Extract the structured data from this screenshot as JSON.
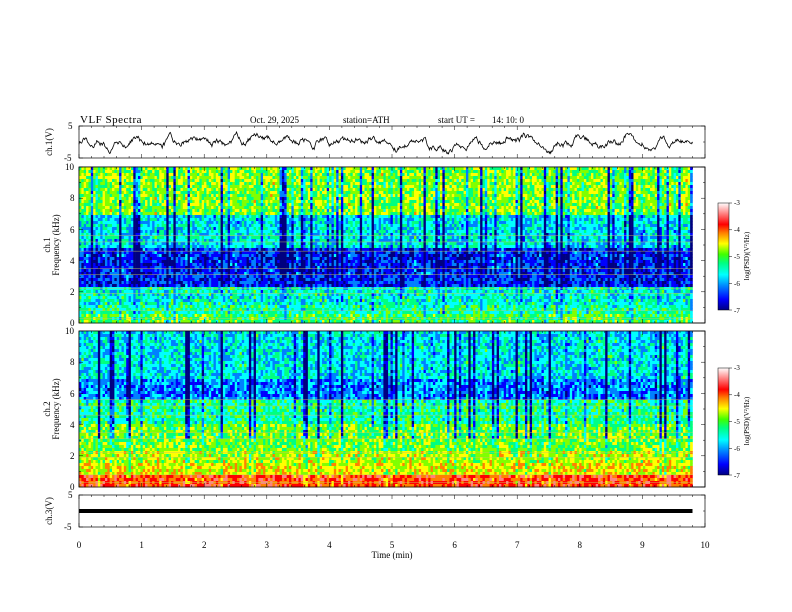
{
  "header": {
    "title": "VLF  Spectra",
    "date": "Oct. 29, 2025",
    "station": "station=ATH",
    "start_label": "start  UT  =",
    "start_time": "14: 10: 0"
  },
  "chart_data": {
    "type": "heatmap",
    "title": "VLF  Spectra",
    "xlabel": "Time  (min)",
    "xlim": [
      0,
      10
    ],
    "x_ticks": [
      "0",
      "1",
      "2",
      "3",
      "4",
      "5",
      "6",
      "7",
      "8",
      "9",
      "10"
    ],
    "panels": [
      {
        "name": "ch1-waveform",
        "type": "line",
        "ylabel": "ch.1(V)",
        "ylim": [
          -5,
          5
        ],
        "y_ticks": [
          "5",
          "-5"
        ],
        "data_end_min": 9.8,
        "amplitude_v": 3
      },
      {
        "name": "ch1-spectrogram",
        "type": "heatmap",
        "ylabel": "ch.1\nFrequency (kHz)",
        "ylim": [
          0,
          10
        ],
        "y_ticks": [
          "0",
          "2",
          "4",
          "6",
          "8",
          "10"
        ],
        "colorbar_label": "log(PSD)(V²/Hz)",
        "colorbar_range": [
          -7,
          -3
        ],
        "colorbar_ticks": [
          "-3",
          "-4",
          "-5",
          "-6",
          "-7"
        ],
        "data_end_min": 9.8
      },
      {
        "name": "ch2-spectrogram",
        "type": "heatmap",
        "ylabel": "ch.2\nFrequency (kHz)",
        "ylim": [
          0,
          10
        ],
        "y_ticks": [
          "0",
          "2",
          "4",
          "6",
          "8",
          "10"
        ],
        "colorbar_label": "log(PSD)(V²/Hz)",
        "colorbar_range": [
          -7,
          -3
        ],
        "colorbar_ticks": [
          "-3",
          "-4",
          "-5",
          "-6",
          "-7"
        ],
        "data_end_min": 9.8
      },
      {
        "name": "ch3-waveform",
        "type": "line",
        "ylabel": "ch.3(V)",
        "ylim": [
          -5,
          5
        ],
        "y_ticks": [
          "5",
          "-5"
        ],
        "data_end_min": 9.8,
        "level_v": 0
      }
    ],
    "colormap": [
      "#000080",
      "#0000ff",
      "#0080ff",
      "#00ffff",
      "#00ff80",
      "#80ff00",
      "#ffff00",
      "#ff8000",
      "#ff0000",
      "#ff8080",
      "#ffffff"
    ]
  },
  "labels": {
    "ch1_wave": "ch.1(V)",
    "ch1_spec_a": "ch.1",
    "ch1_spec_b": "Frequency  (kHz)",
    "ch2_spec_a": "ch.2",
    "ch2_spec_b": "Frequency  (kHz)",
    "ch3_wave": "ch.3(V)",
    "cb1": "log(PSD)(V²/Hz)",
    "cb2": "log(PSD)(V²/Hz)"
  }
}
